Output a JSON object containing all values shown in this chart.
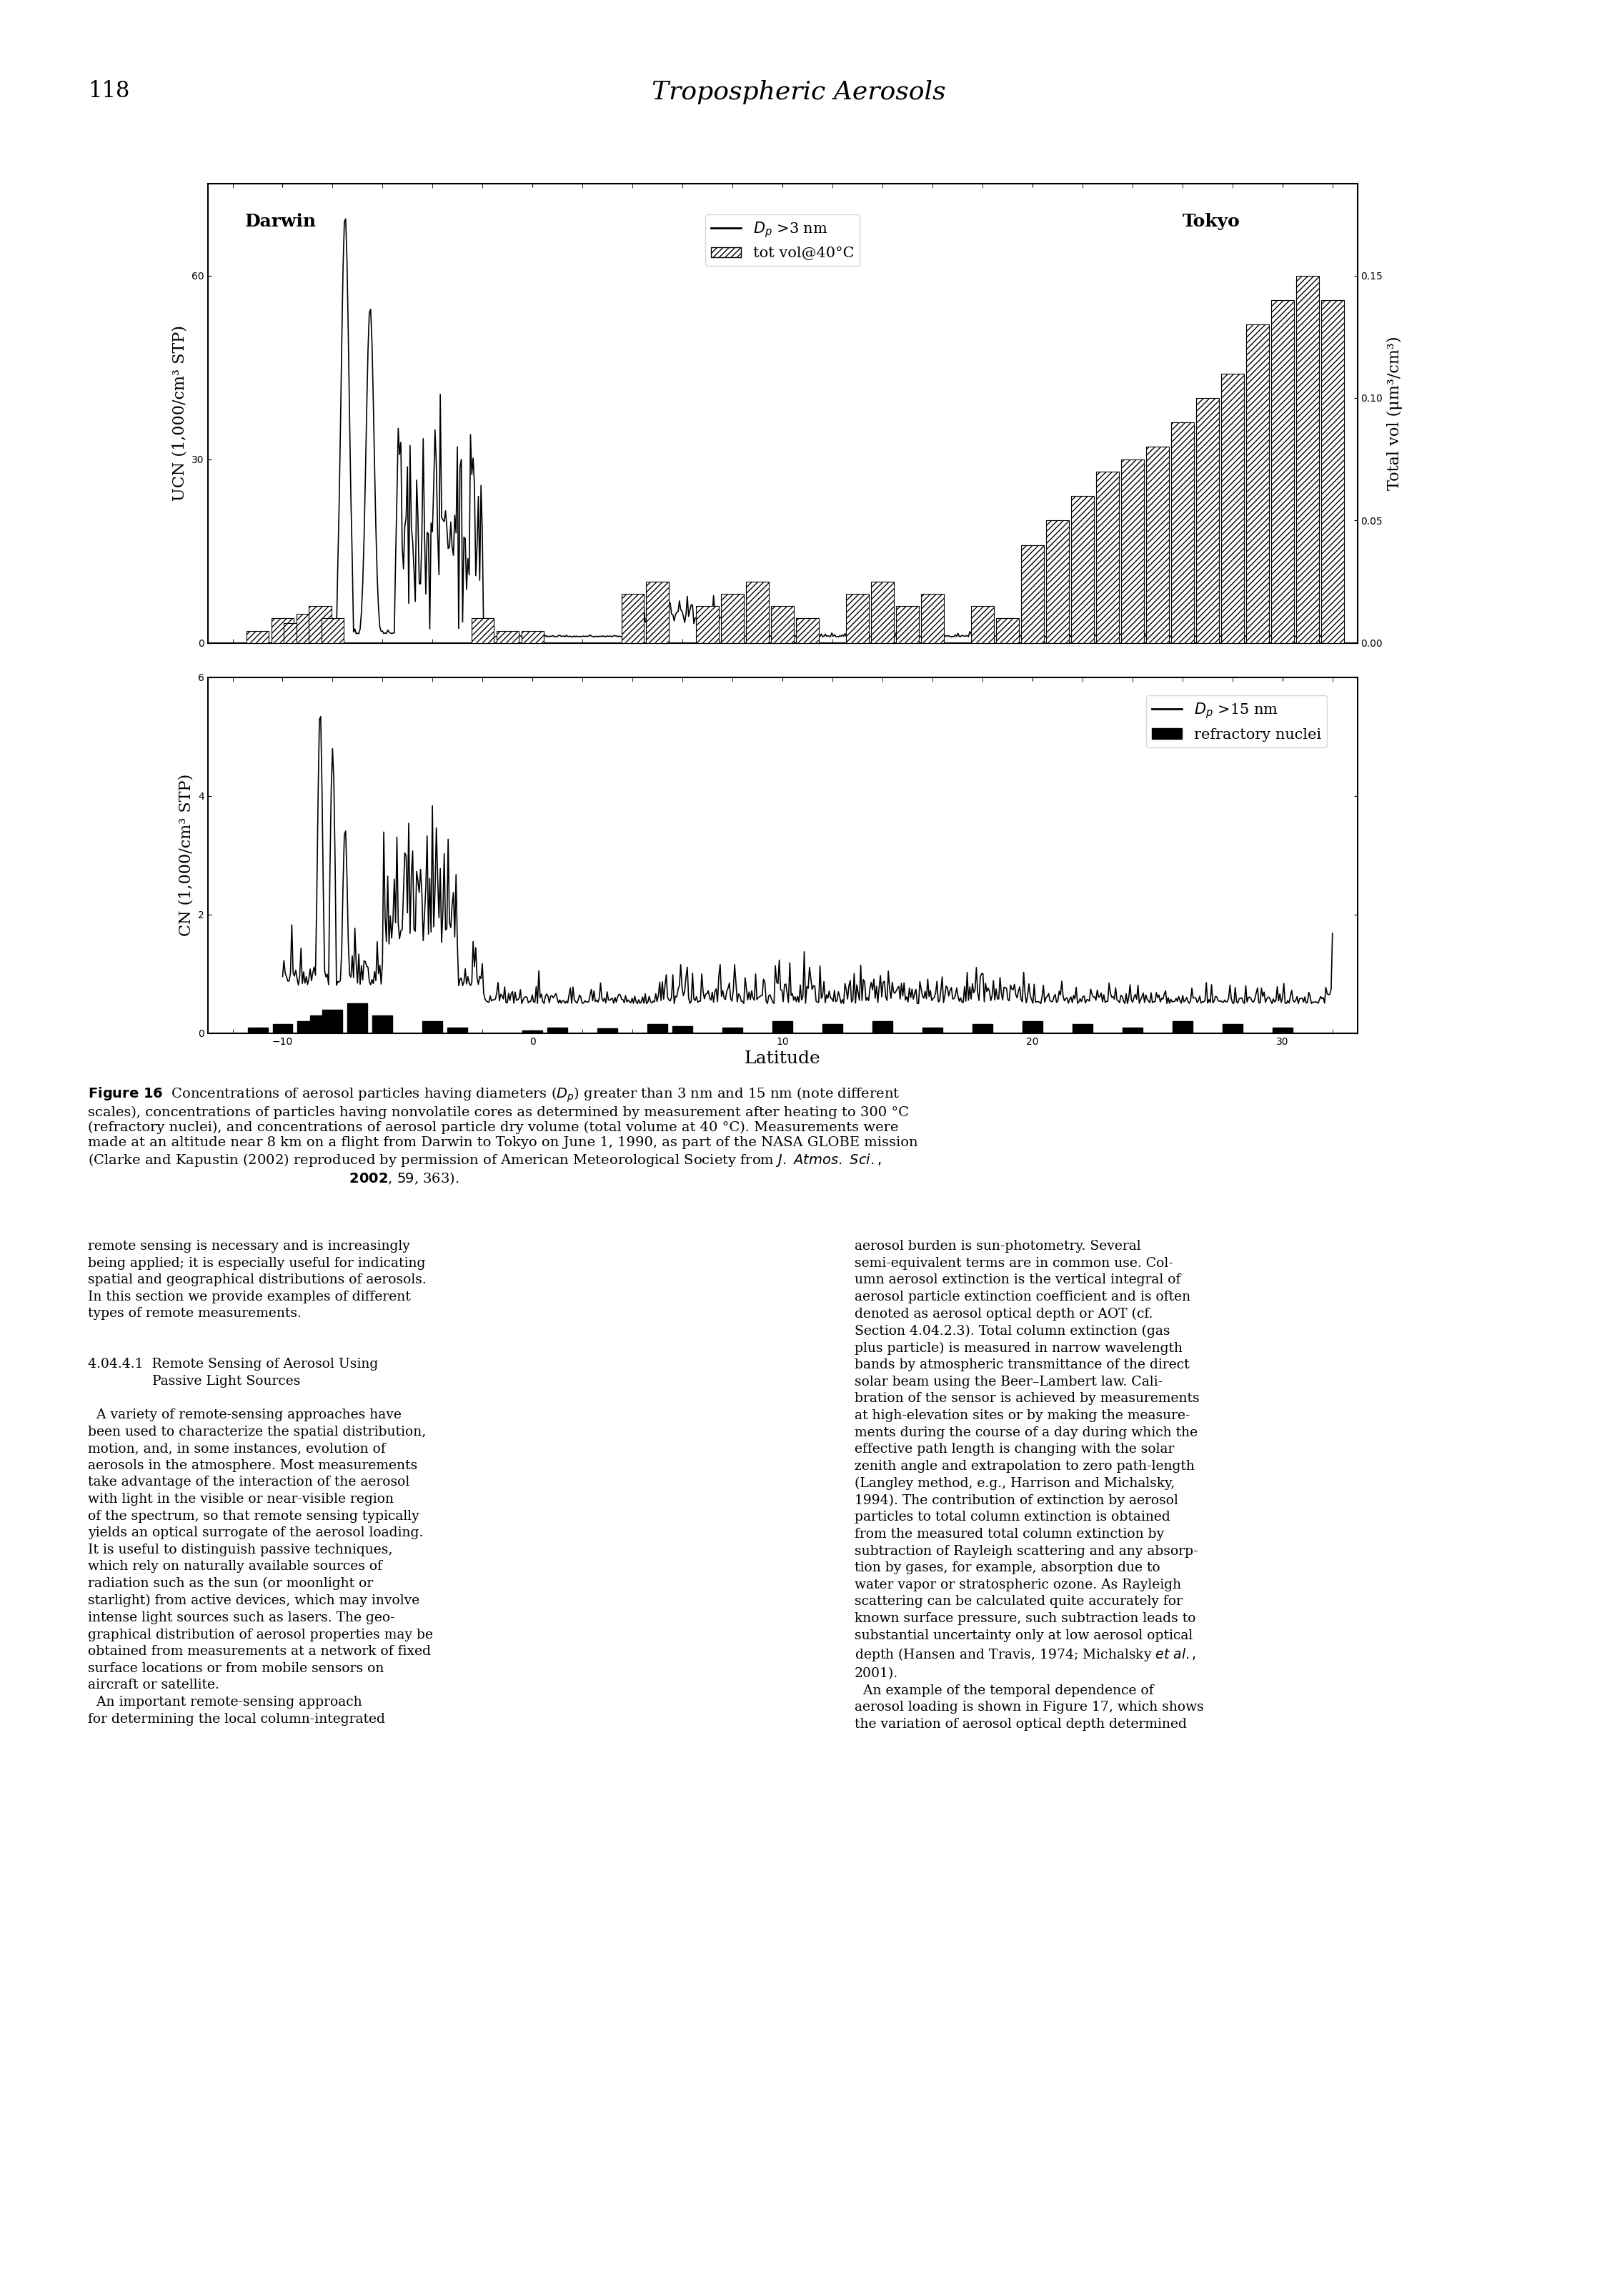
{
  "top_panel": {
    "ylabel_left": "UCN (1,000/cm³ STP)",
    "ylabel_right": "Total vol (μm³/cm³)",
    "ylim_left": [
      0,
      75
    ],
    "ylim_right": [
      0,
      0.1875
    ],
    "yticks_left": [
      0,
      30,
      60
    ],
    "yticks_right": [
      0.0,
      0.05,
      0.1,
      0.15
    ],
    "label_darwin": "Darwin",
    "label_tokyo": "Tokyo",
    "legend_line": "D_p >3 nm",
    "legend_hatch": "tot vol@40°C",
    "line_color": "#000000",
    "hatch_facecolor": "#ffffff",
    "hatch_edgecolor": "#000000",
    "hatch_pattern": "////"
  },
  "bottom_panel": {
    "ylabel_left": "CN (1,000/cm³ STP)",
    "ylim_left": [
      0,
      6
    ],
    "yticks_left": [
      0,
      2,
      4,
      6
    ],
    "legend_line": "D_p >15 nm",
    "legend_bar": "refractory nuclei",
    "line_color": "#000000",
    "bar_color": "#000000"
  },
  "xlabel": "Latitude",
  "xlim": [
    -13,
    33
  ],
  "xticks": [
    -10,
    0,
    10,
    20,
    30
  ],
  "page_number": "118",
  "page_title": "Tropospheric Aerosols",
  "figure_caption": "Figure 16  Concentrations of aerosol particles having diameters (D_p) greater than 3 nm and 15 nm (note different scales), concentrations of particles having nonvolatile cores as determined by measurement after heating to 300 °C (refractory nuclei), and concentrations of aerosol particle dry volume (total volume at 40 °C). Measurements were made at an altitude near 8 km on a flight from Darwin to Tokyo on June 1, 1990, as part of the NASA GLOBE mission (Clarke and Kapustin (2002) reproduced by permission of American Meteorological Society from J. Atmos. Sci.,\n2002, 59, 363)."
}
